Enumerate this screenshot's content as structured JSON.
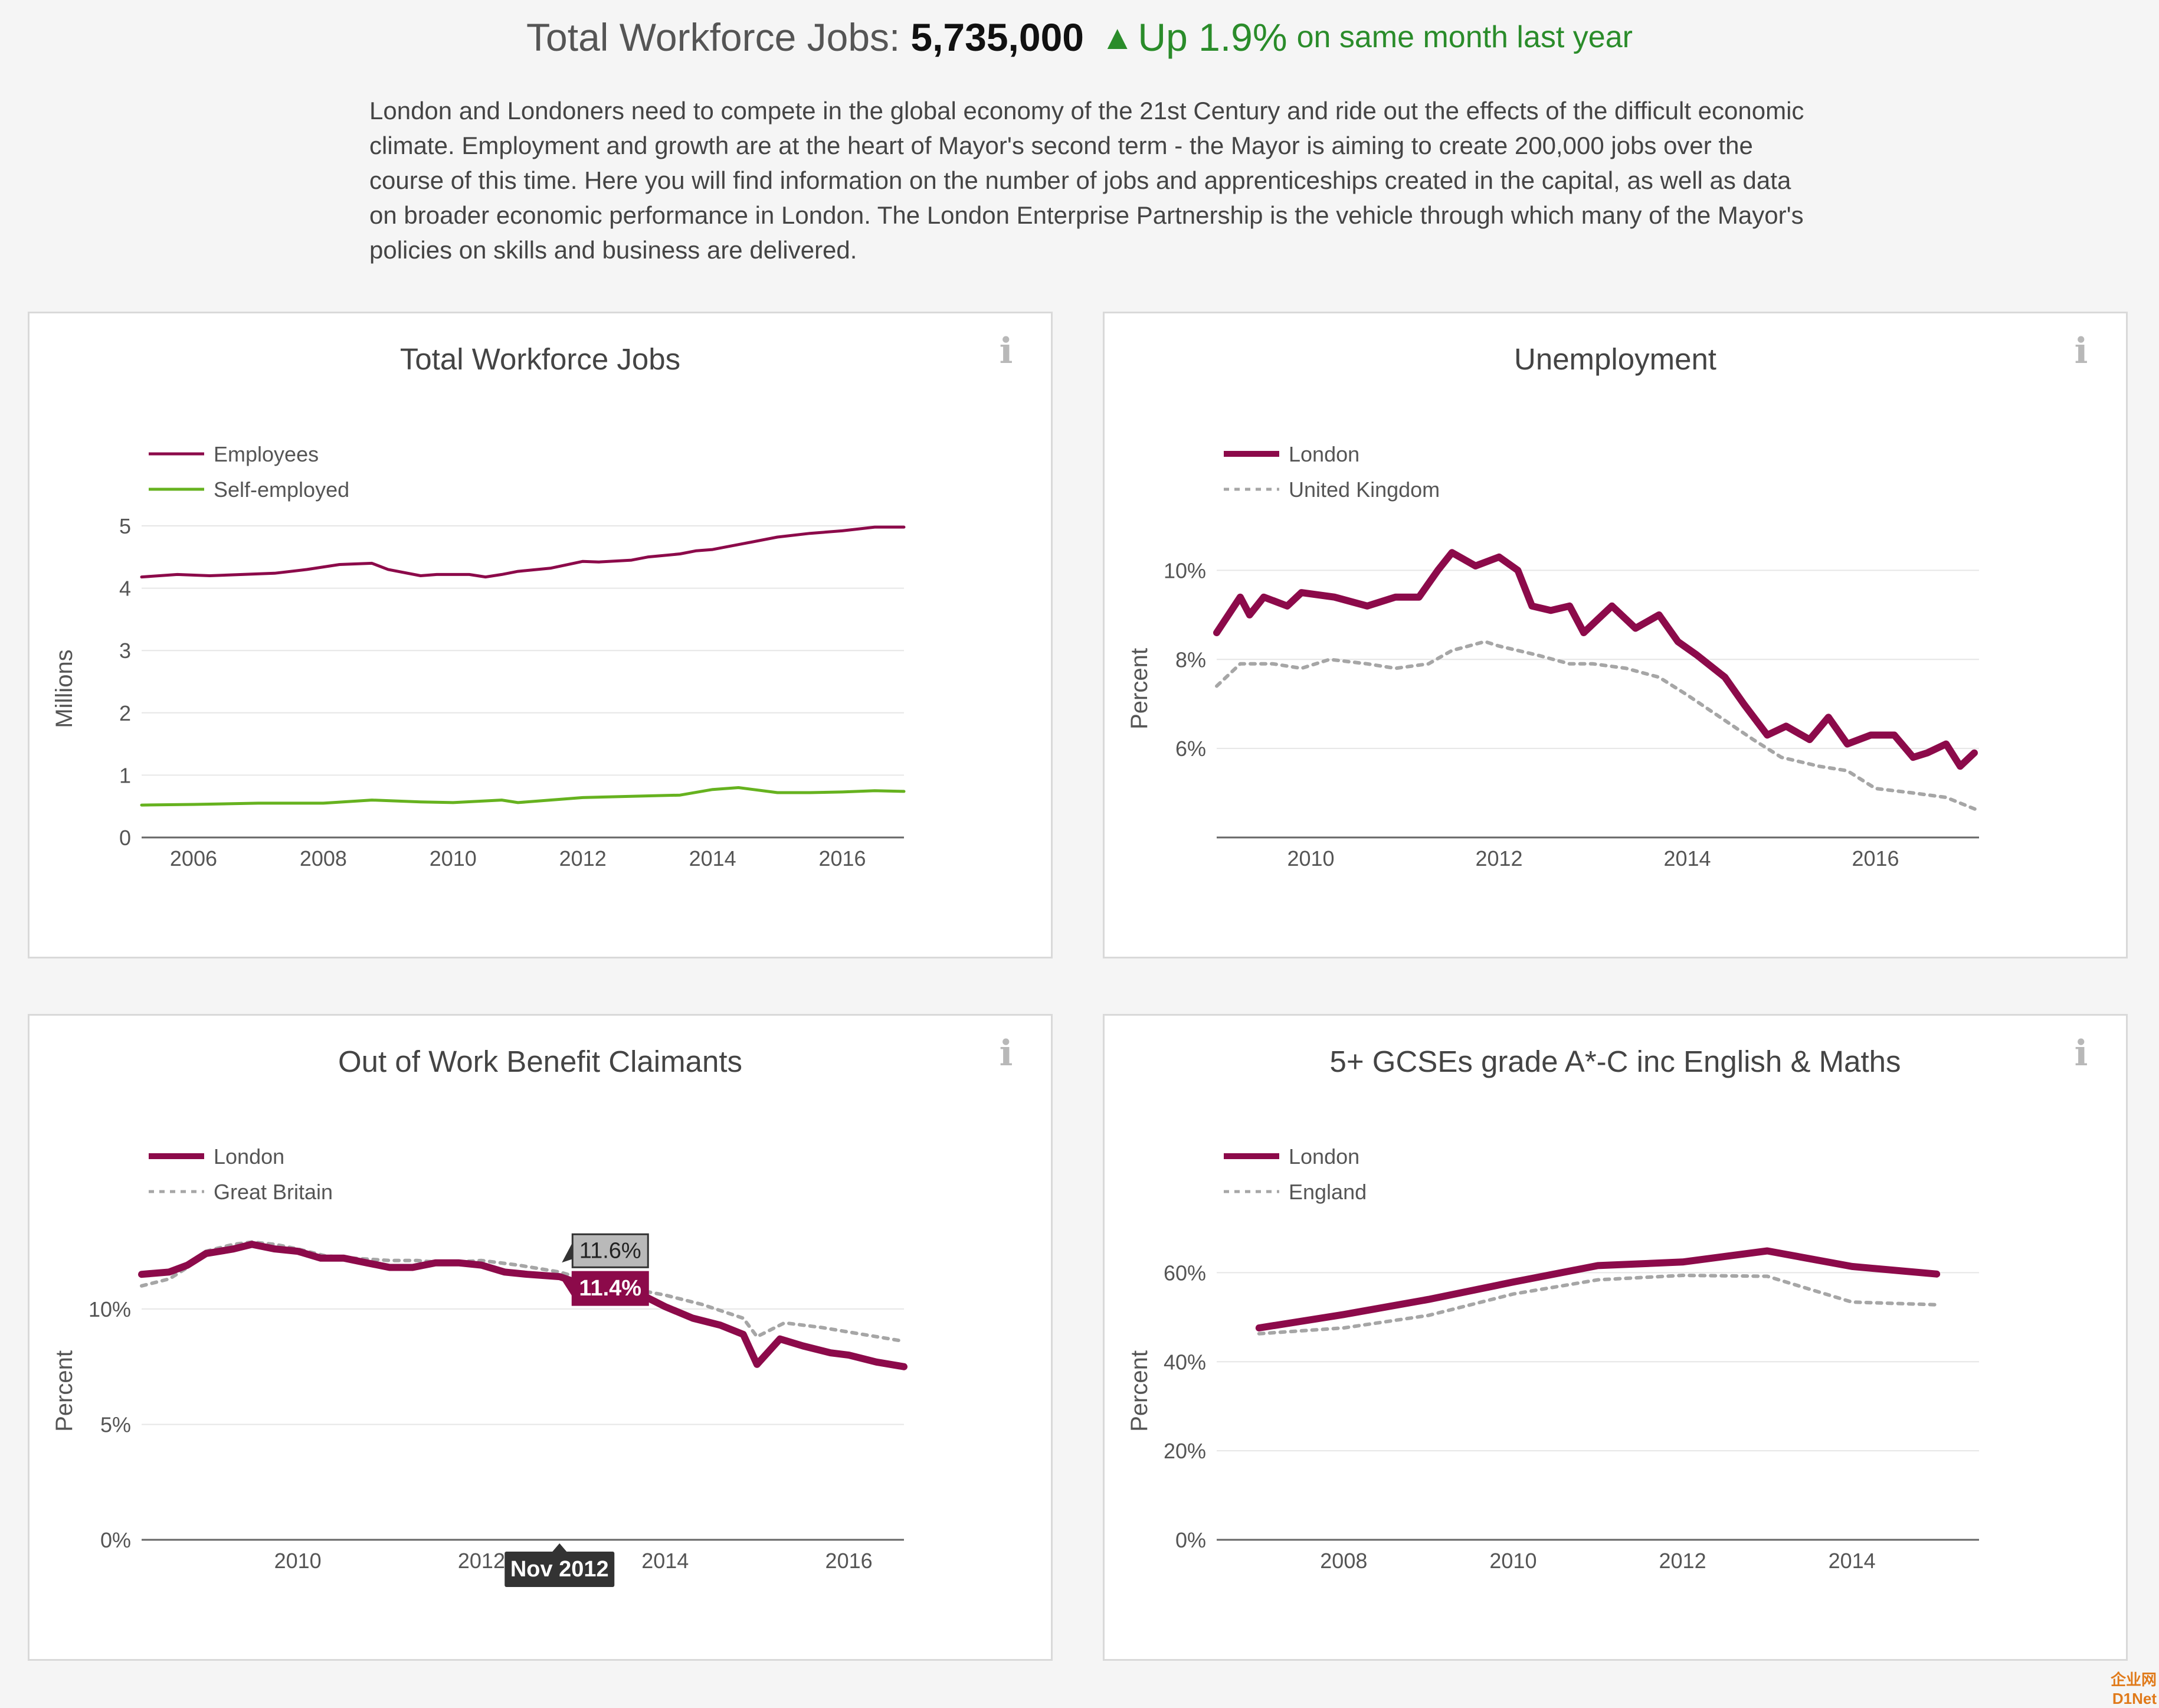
{
  "header": {
    "label": "Total Workforce Jobs:",
    "count": "5,735,000",
    "arrow_icon": "up-triangle-icon",
    "change": "Up 1.9%",
    "suffix": "on same month last year",
    "color_positive": "#2a8c2a"
  },
  "intro": "London and Londoners need to compete in the global economy of the 21st Century and ride out the effects of the difficult economic climate. Employment and growth are at the heart of Mayor's second term - the Mayor is aiming to create 200,000 jobs over the course of this time. Here you will find information on the number of jobs and apprenticeships created in the capital, as well as data on broader economic performance in London. The London Enterprise Partnership is the vehicle through which many of the Mayor's policies on skills and business are delivered.",
  "colors": {
    "london": "#8c0a4a",
    "national": "#a6a6a6",
    "self_employed": "#66b21f"
  },
  "chart_data": [
    {
      "type": "line",
      "title": "Total Workforce Jobs",
      "ylabel": "Millions",
      "xlim": [
        2005.2,
        2016.95
      ],
      "ylim": [
        0,
        5
      ],
      "yticks": [
        0,
        1,
        2,
        3,
        4,
        5
      ],
      "ytick_labels": [
        "0",
        "1",
        "2",
        "3",
        "4",
        "5"
      ],
      "xticks": [
        2006,
        2008,
        2010,
        2012,
        2014,
        2016
      ],
      "xtick_labels": [
        "2006",
        "2008",
        "2010",
        "2012",
        "2014",
        "2016"
      ],
      "legend_position": "top-left",
      "series": [
        {
          "name": "Employees",
          "color": "#8c0a4a",
          "style": "solid",
          "x": [
            2005.2,
            2005.75,
            2006.25,
            2006.75,
            2007.25,
            2007.75,
            2008.25,
            2008.75,
            2009.0,
            2009.5,
            2009.75,
            2010.25,
            2010.5,
            2010.75,
            2011.0,
            2011.5,
            2012.0,
            2012.25,
            2012.75,
            2013.0,
            2013.5,
            2013.75,
            2014.0,
            2014.5,
            2015.0,
            2015.5,
            2016.0,
            2016.5,
            2016.95
          ],
          "y": [
            4.18,
            4.22,
            4.2,
            4.22,
            4.24,
            4.3,
            4.38,
            4.4,
            4.3,
            4.2,
            4.22,
            4.22,
            4.18,
            4.22,
            4.27,
            4.32,
            4.43,
            4.42,
            4.45,
            4.5,
            4.55,
            4.6,
            4.62,
            4.72,
            4.82,
            4.88,
            4.92,
            4.98,
            4.98
          ]
        },
        {
          "name": "Self-employed",
          "color": "#66b21f",
          "style": "solid",
          "x": [
            2005.2,
            2006.0,
            2007.0,
            2008.0,
            2008.75,
            2009.5,
            2010.0,
            2010.75,
            2011.0,
            2011.5,
            2012.0,
            2012.75,
            2013.5,
            2014.0,
            2014.4,
            2015.0,
            2015.5,
            2016.0,
            2016.5,
            2016.95
          ],
          "y": [
            0.52,
            0.53,
            0.55,
            0.55,
            0.6,
            0.57,
            0.56,
            0.6,
            0.56,
            0.6,
            0.64,
            0.66,
            0.68,
            0.77,
            0.8,
            0.72,
            0.72,
            0.73,
            0.75,
            0.74
          ]
        }
      ]
    },
    {
      "type": "line",
      "title": "Unemployment",
      "ylabel": "Percent",
      "xlim": [
        2009.0,
        2017.1
      ],
      "ylim": [
        4.0,
        11.0
      ],
      "yticks": [
        6,
        8,
        10
      ],
      "ytick_labels": [
        "6%",
        "8%",
        "10%"
      ],
      "xticks": [
        2010,
        2012,
        2014,
        2016
      ],
      "xtick_labels": [
        "2010",
        "2012",
        "2014",
        "2016"
      ],
      "baseline": 4.0,
      "legend_position": "top-left",
      "series": [
        {
          "name": "London",
          "color": "#8c0a4a",
          "style": "solid",
          "x": [
            2009.0,
            2009.25,
            2009.35,
            2009.5,
            2009.75,
            2009.9,
            2010.25,
            2010.6,
            2010.9,
            2011.15,
            2011.35,
            2011.5,
            2011.75,
            2012.0,
            2012.2,
            2012.35,
            2012.55,
            2012.75,
            2012.9,
            2013.0,
            2013.2,
            2013.45,
            2013.7,
            2013.9,
            2014.1,
            2014.4,
            2014.6,
            2014.85,
            2015.05,
            2015.3,
            2015.5,
            2015.7,
            2015.95,
            2016.2,
            2016.4,
            2016.55,
            2016.75,
            2016.9,
            2017.05
          ],
          "y": [
            8.6,
            9.4,
            9.0,
            9.4,
            9.2,
            9.5,
            9.4,
            9.2,
            9.4,
            9.4,
            10.0,
            10.4,
            10.1,
            10.3,
            10.0,
            9.2,
            9.1,
            9.2,
            8.6,
            8.8,
            9.2,
            8.7,
            9.0,
            8.4,
            8.1,
            7.6,
            7.0,
            6.3,
            6.5,
            6.2,
            6.7,
            6.1,
            6.3,
            6.3,
            5.8,
            5.9,
            6.1,
            5.6,
            5.9
          ]
        },
        {
          "name": "United Kingdom",
          "color": "#a6a6a6",
          "style": "dotted",
          "x": [
            2009.0,
            2009.25,
            2009.6,
            2009.9,
            2010.2,
            2010.6,
            2010.9,
            2011.25,
            2011.5,
            2011.85,
            2012.0,
            2012.4,
            2012.75,
            2013.0,
            2013.35,
            2013.7,
            2014.0,
            2014.35,
            2014.7,
            2015.0,
            2015.4,
            2015.7,
            2016.0,
            2016.4,
            2016.75,
            2017.1
          ],
          "y": [
            7.4,
            7.9,
            7.9,
            7.8,
            8.0,
            7.9,
            7.8,
            7.9,
            8.2,
            8.4,
            8.3,
            8.1,
            7.9,
            7.9,
            7.8,
            7.6,
            7.2,
            6.7,
            6.2,
            5.8,
            5.6,
            5.5,
            5.1,
            5.0,
            4.9,
            4.6
          ]
        }
      ]
    },
    {
      "type": "line",
      "title": "Out of Work Benefit Claimants",
      "ylabel": "Percent",
      "xlim": [
        2008.3,
        2016.6
      ],
      "ylim": [
        0,
        13.5
      ],
      "yticks": [
        0,
        5,
        10
      ],
      "ytick_labels": [
        "0%",
        "5%",
        "10%"
      ],
      "xticks": [
        2010,
        2012,
        2014,
        2016
      ],
      "xtick_labels": [
        "2010",
        "2012",
        "2014",
        "2016"
      ],
      "legend_position": "top-left",
      "series": [
        {
          "name": "London",
          "color": "#8c0a4a",
          "style": "solid",
          "x": [
            2008.3,
            2008.6,
            2008.8,
            2009.0,
            2009.3,
            2009.5,
            2009.75,
            2010.0,
            2010.25,
            2010.5,
            2010.75,
            2011.0,
            2011.25,
            2011.5,
            2011.75,
            2012.0,
            2012.25,
            2012.5,
            2012.85,
            2013.0,
            2013.4,
            2013.75,
            2014.0,
            2014.3,
            2014.6,
            2014.85,
            2015.0,
            2015.25,
            2015.5,
            2015.8,
            2016.0,
            2016.3,
            2016.6
          ],
          "y": [
            11.5,
            11.6,
            11.9,
            12.4,
            12.6,
            12.8,
            12.6,
            12.5,
            12.2,
            12.2,
            12.0,
            11.8,
            11.8,
            12.0,
            12.0,
            11.9,
            11.6,
            11.5,
            11.4,
            11.2,
            10.9,
            10.6,
            10.1,
            9.6,
            9.3,
            8.9,
            7.6,
            8.7,
            8.4,
            8.1,
            8.0,
            7.7,
            7.5
          ]
        },
        {
          "name": "Great Britain",
          "color": "#a6a6a6",
          "style": "dotted",
          "x": [
            2008.3,
            2008.6,
            2008.8,
            2009.0,
            2009.3,
            2009.5,
            2009.75,
            2010.0,
            2010.3,
            2010.6,
            2011.0,
            2011.3,
            2011.6,
            2012.0,
            2012.4,
            2012.85,
            2013.2,
            2013.6,
            2014.0,
            2014.4,
            2014.85,
            2015.0,
            2015.3,
            2015.7,
            2016.0,
            2016.3,
            2016.6
          ],
          "y": [
            11.0,
            11.3,
            11.8,
            12.5,
            12.8,
            12.9,
            12.8,
            12.6,
            12.3,
            12.2,
            12.1,
            12.1,
            12.0,
            12.1,
            11.9,
            11.6,
            11.2,
            10.9,
            10.6,
            10.2,
            9.6,
            8.8,
            9.4,
            9.2,
            9.0,
            8.8,
            8.6
          ]
        }
      ],
      "tooltip": {
        "x_label": "Nov 2012",
        "values": [
          {
            "series": "Great Britain",
            "label": "11.6%"
          },
          {
            "series": "London",
            "label": "11.4%"
          }
        ]
      }
    },
    {
      "type": "line",
      "title": "5+ GCSEs grade A*-C inc English & Maths",
      "ylabel": "Percent",
      "xlim": [
        2006.5,
        2015.5
      ],
      "ylim": [
        0,
        70
      ],
      "yticks": [
        0,
        20,
        40,
        60
      ],
      "ytick_labels": [
        "0%",
        "20%",
        "40%",
        "60%"
      ],
      "xticks": [
        2008,
        2010,
        2012,
        2014
      ],
      "xtick_labels": [
        "2008",
        "2010",
        "2012",
        "2014"
      ],
      "legend_position": "top-left",
      "series": [
        {
          "name": "London",
          "color": "#8c0a4a",
          "style": "solid",
          "x": [
            2007,
            2008,
            2009,
            2010,
            2011,
            2012,
            2013,
            2014,
            2015
          ],
          "y": [
            47.6,
            50.6,
            54.0,
            57.9,
            61.6,
            62.4,
            64.9,
            61.4,
            59.7
          ]
        },
        {
          "name": "England",
          "color": "#a6a6a6",
          "style": "dotted",
          "x": [
            2007,
            2008,
            2009,
            2010,
            2011,
            2012,
            2013,
            2014,
            2015
          ],
          "y": [
            46.3,
            47.6,
            50.4,
            55.2,
            58.4,
            59.4,
            59.2,
            53.4,
            52.8
          ]
        }
      ]
    }
  ],
  "watermark": "企业网 D1Net"
}
